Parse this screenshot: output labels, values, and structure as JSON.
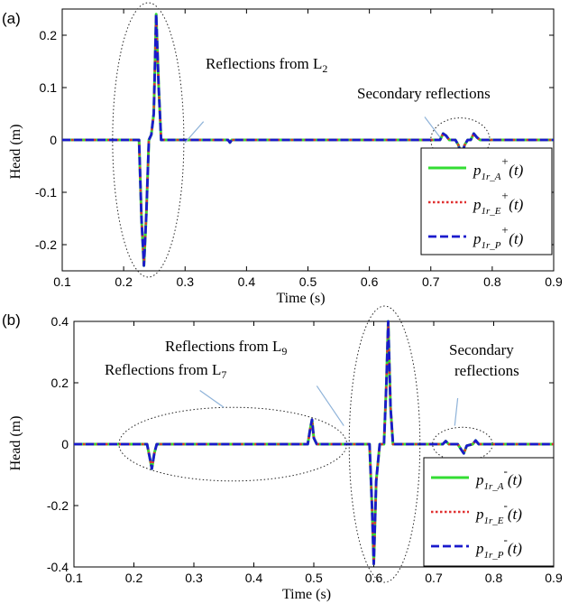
{
  "colors": {
    "A": "#33dd33",
    "E": "#e03030",
    "P": "#1a1acc"
  },
  "chart_data": [
    {
      "type": "line",
      "panel_label": "(a)",
      "xlabel": "Time (s)",
      "ylabel": "Head (m)",
      "xlim": [
        0.1,
        0.9
      ],
      "ylim": [
        -0.25,
        0.25
      ],
      "xticks": [
        "0.1",
        "0.2",
        "0.3",
        "0.4",
        "0.5",
        "0.6",
        "0.7",
        "0.8",
        "0.9"
      ],
      "yticks": [
        "-0.2",
        "-0.1",
        "0",
        "0.1",
        "0.2"
      ],
      "legend_position": "bottom-right",
      "series": [
        {
          "name": "p1r_A+(t)",
          "base": "p",
          "sub": "1r_A",
          "sup": "+",
          "arg": "(t)",
          "x": [
            0.1,
            0.225,
            0.229,
            0.233,
            0.237,
            0.241,
            0.245,
            0.249,
            0.253,
            0.257,
            0.261,
            0.265,
            0.37,
            0.373,
            0.376,
            0.62,
            0.64,
            0.715,
            0.72,
            0.725,
            0.73,
            0.74,
            0.745,
            0.75,
            0.755,
            0.76,
            0.765,
            0.77,
            0.775,
            0.78,
            0.9
          ],
          "y": [
            0,
            0,
            -0.15,
            -0.24,
            -0.14,
            0,
            0.01,
            0.05,
            0.24,
            0.1,
            0,
            0,
            0,
            -0.005,
            0,
            0,
            0,
            0,
            0.012,
            0.008,
            0,
            0,
            -0.01,
            -0.03,
            -0.01,
            0,
            0,
            0.012,
            0.005,
            0,
            0
          ]
        },
        {
          "name": "p1r_E+(t)",
          "base": "p",
          "sub": "1r_E",
          "sup": "+",
          "arg": "(t)",
          "x": [
            0.1,
            0.225,
            0.229,
            0.233,
            0.237,
            0.241,
            0.245,
            0.249,
            0.253,
            0.257,
            0.261,
            0.265,
            0.37,
            0.373,
            0.376,
            0.62,
            0.64,
            0.715,
            0.72,
            0.725,
            0.73,
            0.74,
            0.745,
            0.75,
            0.755,
            0.76,
            0.765,
            0.77,
            0.775,
            0.78,
            0.9
          ],
          "y": [
            0,
            0,
            -0.15,
            -0.24,
            -0.14,
            0,
            0.01,
            0.05,
            0.24,
            0.1,
            0,
            0,
            0,
            -0.005,
            0,
            0,
            0,
            0,
            0.012,
            0.008,
            0,
            0,
            -0.01,
            -0.03,
            -0.01,
            0,
            0,
            0.012,
            0.005,
            0,
            0
          ]
        },
        {
          "name": "p1r_P+(t)",
          "base": "p",
          "sub": "1r_P",
          "sup": "+",
          "arg": "(t)",
          "x": [
            0.1,
            0.225,
            0.229,
            0.233,
            0.237,
            0.241,
            0.245,
            0.249,
            0.253,
            0.257,
            0.261,
            0.265,
            0.37,
            0.373,
            0.376,
            0.62,
            0.64,
            0.715,
            0.72,
            0.725,
            0.73,
            0.74,
            0.745,
            0.75,
            0.755,
            0.76,
            0.765,
            0.77,
            0.775,
            0.78,
            0.9
          ],
          "y": [
            0,
            0,
            -0.15,
            -0.24,
            -0.14,
            0,
            0.01,
            0.05,
            0.24,
            0.1,
            0,
            0,
            0,
            -0.005,
            0,
            0,
            0,
            0,
            0.012,
            0.008,
            0,
            0,
            -0.01,
            -0.03,
            -0.01,
            0,
            0,
            0.012,
            0.005,
            0,
            0
          ]
        }
      ],
      "annotations": [
        {
          "text": "Reflections from L",
          "sub": "2",
          "line": [
            [
              0.3,
              -0.005
            ],
            [
              0.33,
              0.035
            ]
          ],
          "ellipse": {
            "cx": 0.24,
            "cy": 0.0,
            "rx": 0.058,
            "ry": 0.262
          }
        },
        {
          "text": "Secondary reflections",
          "line": [
            [
              0.69,
              0.044
            ],
            [
              0.715,
              0.005
            ]
          ],
          "ellipse": {
            "cx": 0.748,
            "cy": 0.0,
            "rx": 0.048,
            "ry": 0.042
          }
        }
      ]
    },
    {
      "type": "line",
      "panel_label": "(b)",
      "xlabel": "Time (s)",
      "ylabel": "Head (m)",
      "xlim": [
        0.1,
        0.9
      ],
      "ylim": [
        -0.4,
        0.4
      ],
      "xticks": [
        "0.1",
        "0.2",
        "0.3",
        "0.4",
        "0.5",
        "0.6",
        "0.7",
        "0.8",
        "0.9"
      ],
      "yticks": [
        "-0.4",
        "-0.2",
        "0",
        "0.2",
        "0.4"
      ],
      "legend_position": "bottom-right",
      "series": [
        {
          "name": "p1r_A-(t)",
          "base": "p",
          "sub": "1r_A",
          "sup": "-",
          "arg": "(t)",
          "x": [
            0.1,
            0.222,
            0.226,
            0.23,
            0.234,
            0.238,
            0.37,
            0.49,
            0.494,
            0.497,
            0.5,
            0.505,
            0.593,
            0.597,
            0.6,
            0.604,
            0.61,
            0.617,
            0.621,
            0.624,
            0.628,
            0.632,
            0.64,
            0.715,
            0.72,
            0.725,
            0.74,
            0.745,
            0.75,
            0.755,
            0.765,
            0.77,
            0.775,
            0.9
          ],
          "y": [
            0,
            0,
            -0.04,
            -0.08,
            -0.03,
            0,
            0,
            0,
            0.05,
            0.08,
            0.02,
            0,
            0,
            -0.2,
            -0.39,
            -0.12,
            0,
            0,
            0.2,
            0.4,
            0.12,
            0,
            0,
            0,
            0.01,
            0,
            0,
            -0.015,
            -0.03,
            -0.005,
            0,
            0.012,
            0,
            0
          ]
        },
        {
          "name": "p1r_E-(t)",
          "base": "p",
          "sub": "1r_E",
          "sup": "-",
          "arg": "(t)",
          "x": [
            0.1,
            0.222,
            0.226,
            0.23,
            0.234,
            0.238,
            0.37,
            0.49,
            0.494,
            0.497,
            0.5,
            0.505,
            0.593,
            0.597,
            0.6,
            0.604,
            0.61,
            0.617,
            0.621,
            0.624,
            0.628,
            0.632,
            0.64,
            0.715,
            0.72,
            0.725,
            0.74,
            0.745,
            0.75,
            0.755,
            0.765,
            0.77,
            0.775,
            0.9
          ],
          "y": [
            0,
            0,
            -0.04,
            -0.08,
            -0.03,
            0,
            0,
            0,
            0.05,
            0.08,
            0.02,
            0,
            0,
            -0.2,
            -0.39,
            -0.12,
            0,
            0,
            0.2,
            0.4,
            0.12,
            0,
            0,
            0,
            0.01,
            0,
            0,
            -0.015,
            -0.03,
            -0.005,
            0,
            0.012,
            0,
            0
          ]
        },
        {
          "name": "p1r_P-(t)",
          "base": "p",
          "sub": "1r_P",
          "sup": "-",
          "arg": "(t)",
          "x": [
            0.1,
            0.222,
            0.226,
            0.23,
            0.234,
            0.238,
            0.37,
            0.49,
            0.494,
            0.497,
            0.5,
            0.505,
            0.593,
            0.597,
            0.6,
            0.604,
            0.61,
            0.617,
            0.621,
            0.624,
            0.628,
            0.632,
            0.64,
            0.715,
            0.72,
            0.725,
            0.74,
            0.745,
            0.75,
            0.755,
            0.765,
            0.77,
            0.775,
            0.9
          ],
          "y": [
            0,
            0,
            -0.04,
            -0.08,
            -0.03,
            0,
            0,
            0,
            0.05,
            0.08,
            0.02,
            0,
            0,
            -0.2,
            -0.39,
            -0.12,
            0,
            0,
            0.2,
            0.4,
            0.12,
            0,
            0,
            0,
            0.01,
            0,
            0,
            -0.015,
            -0.03,
            -0.005,
            0,
            0.012,
            0,
            0
          ]
        }
      ],
      "annotations": [
        {
          "text": "Reflections from L",
          "sub": "9",
          "line": [
            [
              0.505,
              0.19
            ],
            [
              0.55,
              0.06
            ]
          ],
          "ellipse": {
            "cx": 0.618,
            "cy": 0.0,
            "rx": 0.059,
            "ry": 0.45
          }
        },
        {
          "text": "Reflections from L",
          "sub": "7",
          "line": [
            [
              0.31,
              0.175
            ],
            [
              0.35,
              0.12
            ]
          ],
          "ellipse": {
            "cx": 0.365,
            "cy": 0.0,
            "rx": 0.19,
            "ry": 0.12
          }
        },
        {
          "text": "Secondary",
          "line": [
            [
              0.74,
              0.15
            ],
            [
              0.735,
              0.06
            ]
          ],
          "ellipse": {
            "cx": 0.748,
            "cy": 0.0,
            "rx": 0.05,
            "ry": 0.055
          }
        },
        {
          "text": "reflections"
        }
      ]
    }
  ]
}
